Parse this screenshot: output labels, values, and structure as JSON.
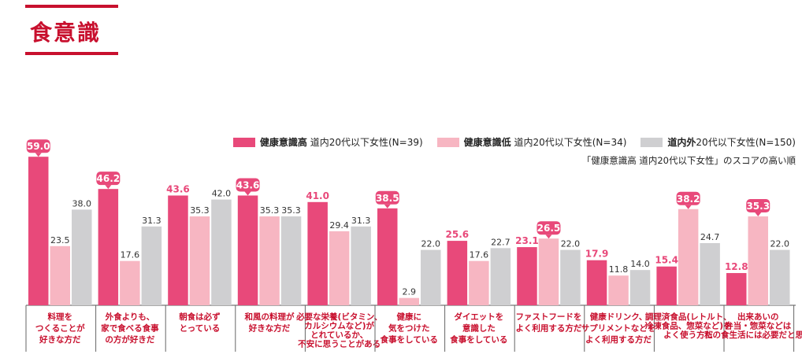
{
  "title": "食意識",
  "legend": [
    {
      "bold": "健康意識高",
      "rest": " 道内20代以下女性(N=39)",
      "color": "#e8497a"
    },
    {
      "bold": "健康意識低",
      "rest": " 道内20代以下女性(N=34)",
      "color": "#f7b6c2"
    },
    {
      "bold": "道内外",
      "rest": "20代以下女性(N=150)",
      "color": "#cfcfd1"
    }
  ],
  "note": "「健康意識高 道内20代以下女性」のスコアの高い順",
  "chart_data": {
    "type": "bar",
    "ylim": [
      0,
      65
    ],
    "categories": [
      [
        "料理を",
        "つくることが",
        "好きな方だ"
      ],
      [
        "外食よりも、",
        "家で食べる食事",
        "の方が好きだ"
      ],
      [
        "朝食は必ず",
        "とっている"
      ],
      [
        "和風の料理が",
        "好きな方だ"
      ],
      [
        "必要な栄養(ビタミン、",
        "カルシウムなど)が",
        "とれているか、",
        "不安に思うことがある"
      ],
      [
        "健康に",
        "気をつけた",
        "食事をしている"
      ],
      [
        "ダイエットを",
        "意識した",
        "食事をしている"
      ],
      [
        "ファストフードを",
        "よく利用する方だ"
      ],
      [
        "健康ドリンク、",
        "サプリメントなどを",
        "よく利用する方だ"
      ],
      [
        "調理済食品(レトルト、",
        "冷凍食品、惣菜など)を",
        "よく使う方だ"
      ],
      [
        "出来あいの",
        "弁当・惣菜などは",
        "私の食生活には必要だと思う"
      ]
    ],
    "series": [
      {
        "name": "健康意識高 道内20代以下女性(N=39)",
        "color": "#e8497a",
        "values": [
          59.0,
          46.2,
          43.6,
          43.6,
          41.0,
          38.5,
          25.6,
          23.1,
          17.9,
          15.4,
          12.8
        ]
      },
      {
        "name": "健康意識低 道内20代以下女性(N=34)",
        "color": "#f7b6c2",
        "values": [
          23.5,
          17.6,
          35.3,
          35.3,
          29.4,
          2.9,
          17.6,
          26.5,
          11.8,
          38.2,
          35.3
        ]
      },
      {
        "name": "道内外20代以下女性(N=150)",
        "color": "#cfcfd1",
        "values": [
          38.0,
          31.3,
          42.0,
          35.3,
          31.3,
          22.0,
          22.7,
          22.0,
          14.0,
          24.7,
          22.0
        ]
      }
    ],
    "labels": [
      [
        "59.0",
        "23.5",
        "38.0"
      ],
      [
        "46.2",
        "17.6",
        "31.3"
      ],
      [
        "43.6",
        "35.3",
        "42.0"
      ],
      [
        "43.6",
        "35.3",
        "35.3"
      ],
      [
        "41.0",
        "29.4",
        "31.3"
      ],
      [
        "38.5",
        "2.9",
        "22.0"
      ],
      [
        "25.6",
        "17.6",
        "22.7"
      ],
      [
        "23.1",
        "26.5",
        "22.0"
      ],
      [
        "17.9",
        "11.8",
        "14.0"
      ],
      [
        "15.4",
        "38.2",
        "24.7"
      ],
      [
        "12.8",
        "35.3",
        "22.0"
      ]
    ],
    "highlight": [
      [
        true,
        false,
        false
      ],
      [
        true,
        false,
        false
      ],
      [
        false,
        false,
        false
      ],
      [
        true,
        false,
        false
      ],
      [
        false,
        false,
        false
      ],
      [
        true,
        false,
        false
      ],
      [
        false,
        false,
        false
      ],
      [
        false,
        true,
        false
      ],
      [
        false,
        false,
        false
      ],
      [
        false,
        true,
        false
      ],
      [
        false,
        true,
        false
      ]
    ]
  }
}
